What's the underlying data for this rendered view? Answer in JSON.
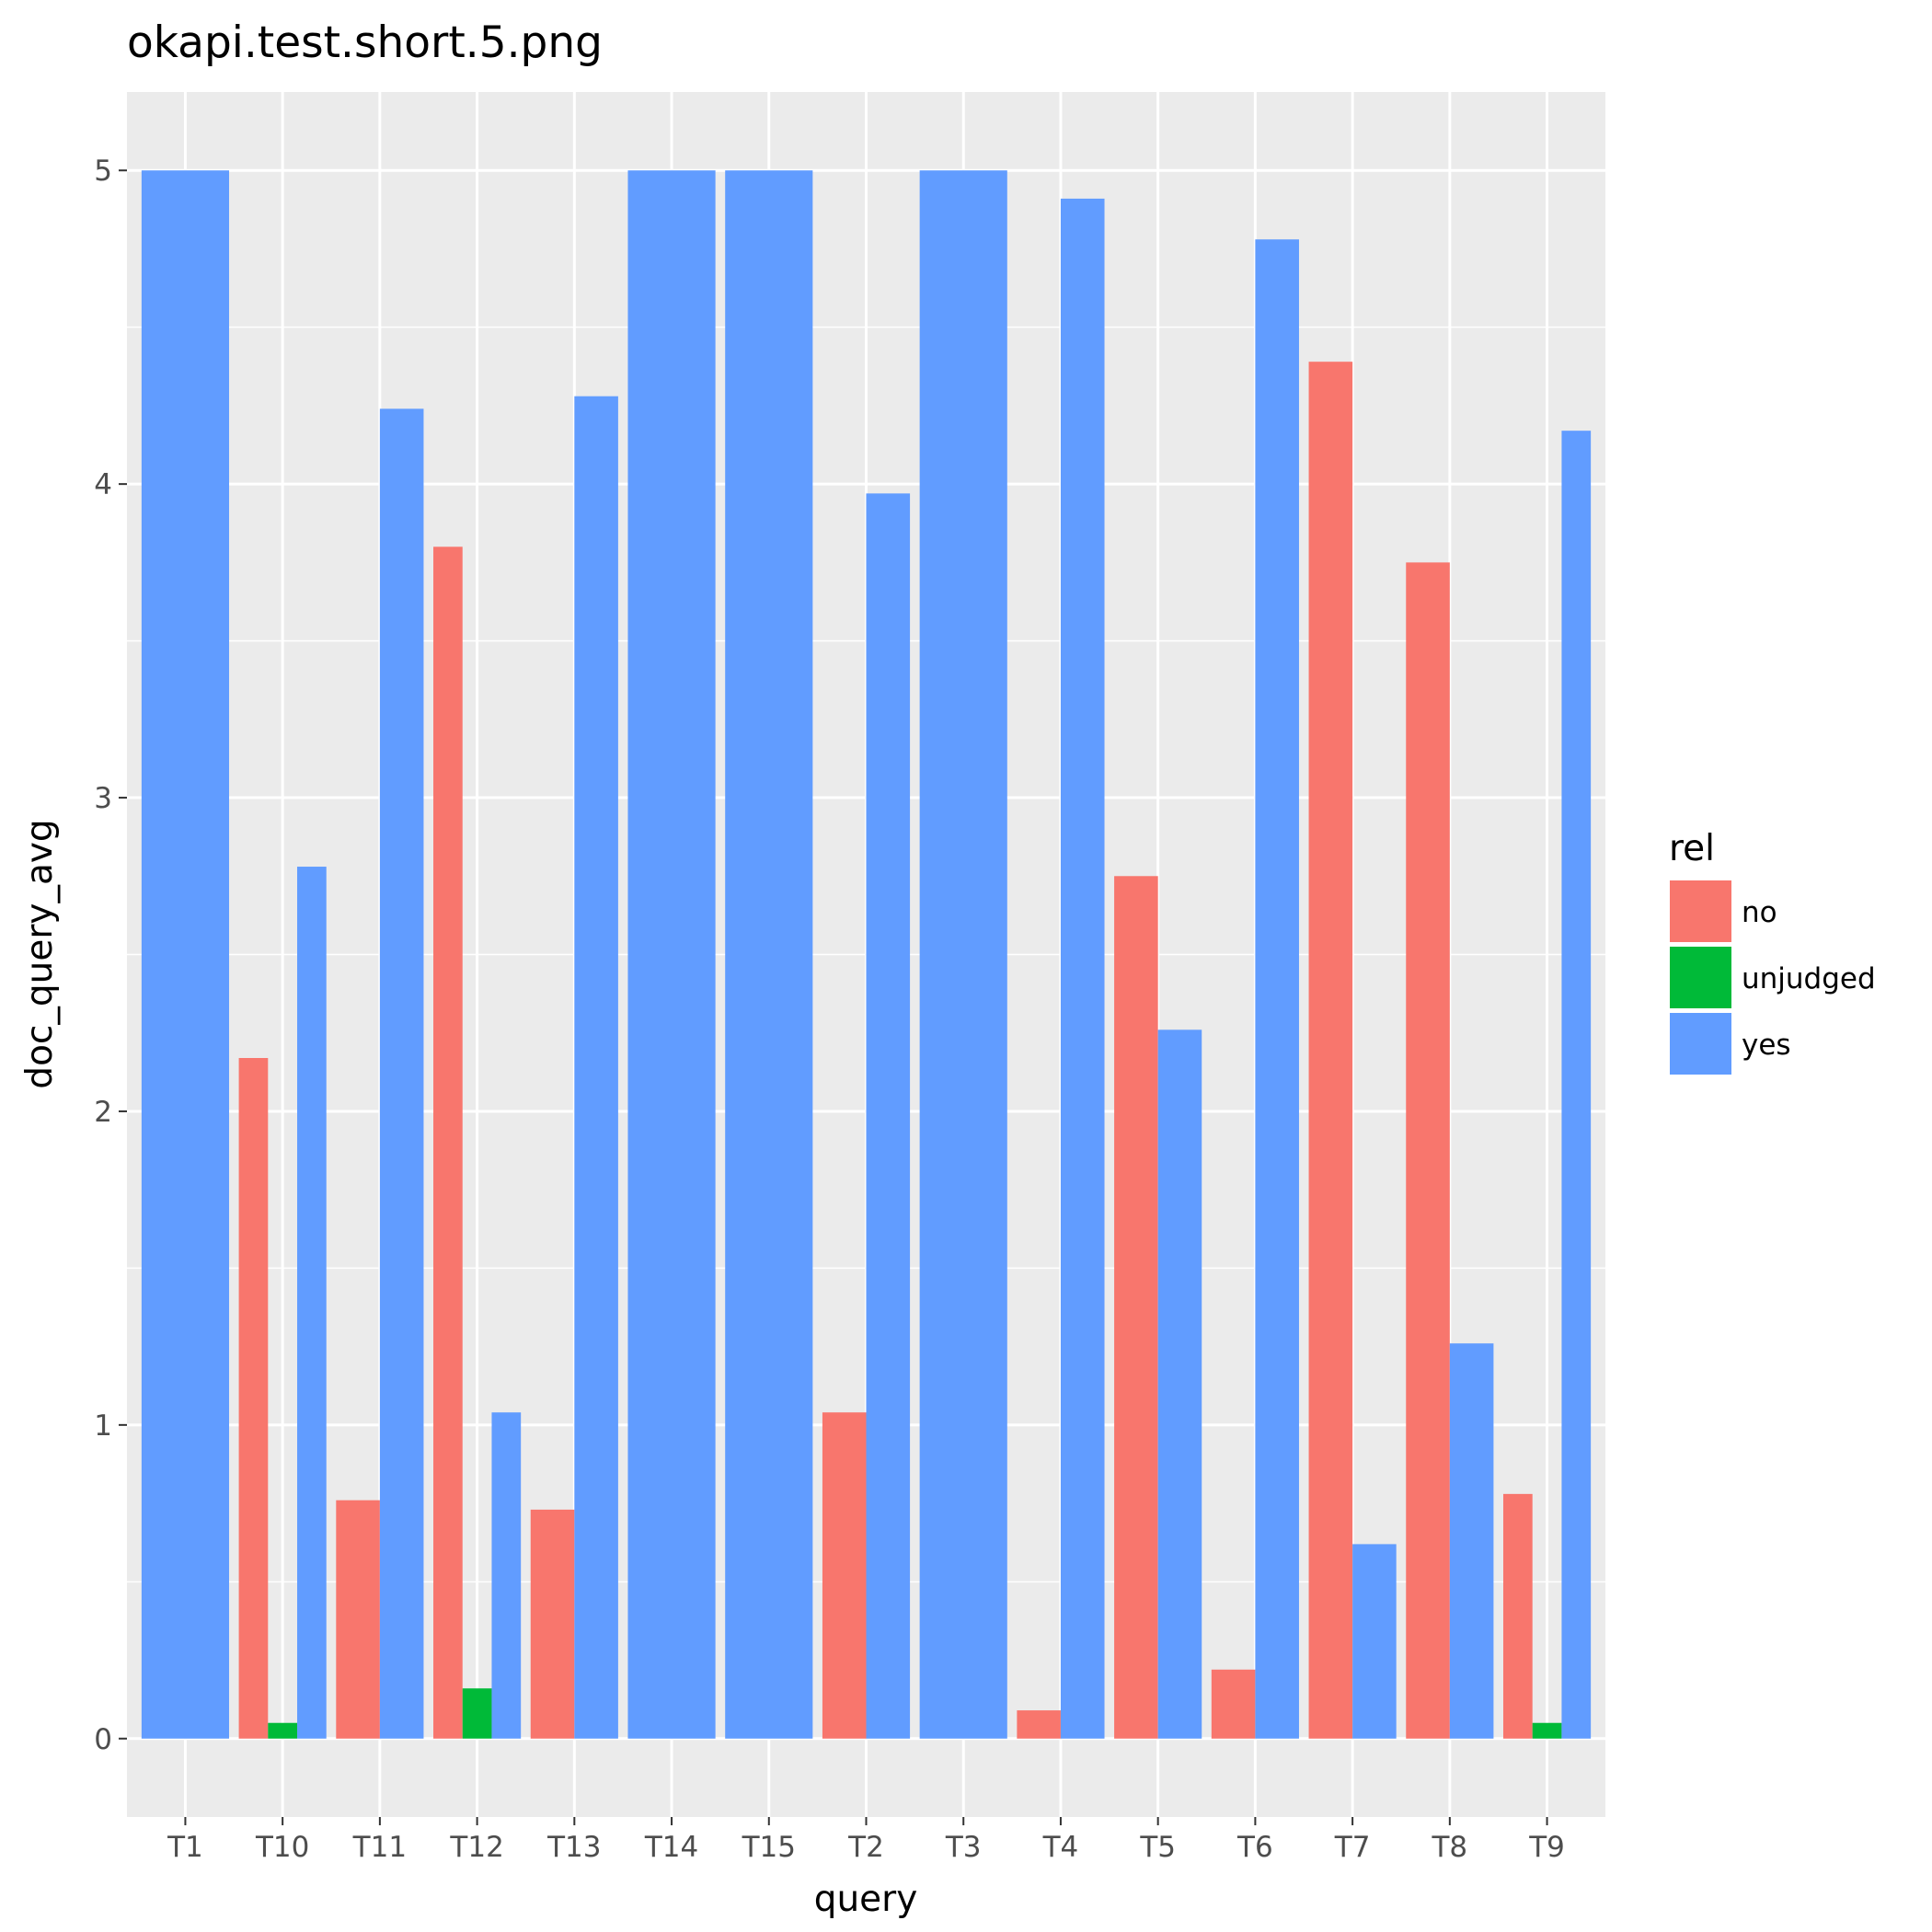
{
  "chart_data": {
    "type": "bar",
    "title": "okapi.test.short.5.png",
    "xlabel": "query",
    "ylabel": "doc_query_avg",
    "ylim": [
      -0.25,
      5.25
    ],
    "yticks": [
      0,
      1,
      2,
      3,
      4,
      5
    ],
    "grid": true,
    "legend_position": "right",
    "legend_title": "rel",
    "categories": [
      "T1",
      "T10",
      "T11",
      "T12",
      "T13",
      "T14",
      "T15",
      "T2",
      "T3",
      "T4",
      "T5",
      "T6",
      "T7",
      "T8",
      "T9"
    ],
    "series": [
      {
        "name": "no",
        "color": "#F8766D",
        "values": [
          null,
          2.17,
          0.76,
          3.8,
          0.73,
          null,
          null,
          1.04,
          null,
          0.09,
          2.75,
          0.22,
          4.39,
          3.75,
          0.78
        ]
      },
      {
        "name": "unjudged",
        "color": "#00BA38",
        "values": [
          null,
          0.05,
          null,
          0.16,
          null,
          null,
          null,
          null,
          null,
          null,
          null,
          null,
          null,
          null,
          0.05
        ]
      },
      {
        "name": "yes",
        "color": "#619CFF",
        "values": [
          5.0,
          2.78,
          4.24,
          1.04,
          4.28,
          5.0,
          5.0,
          3.97,
          5.0,
          4.91,
          2.26,
          4.78,
          0.62,
          1.26,
          4.17
        ]
      }
    ]
  }
}
